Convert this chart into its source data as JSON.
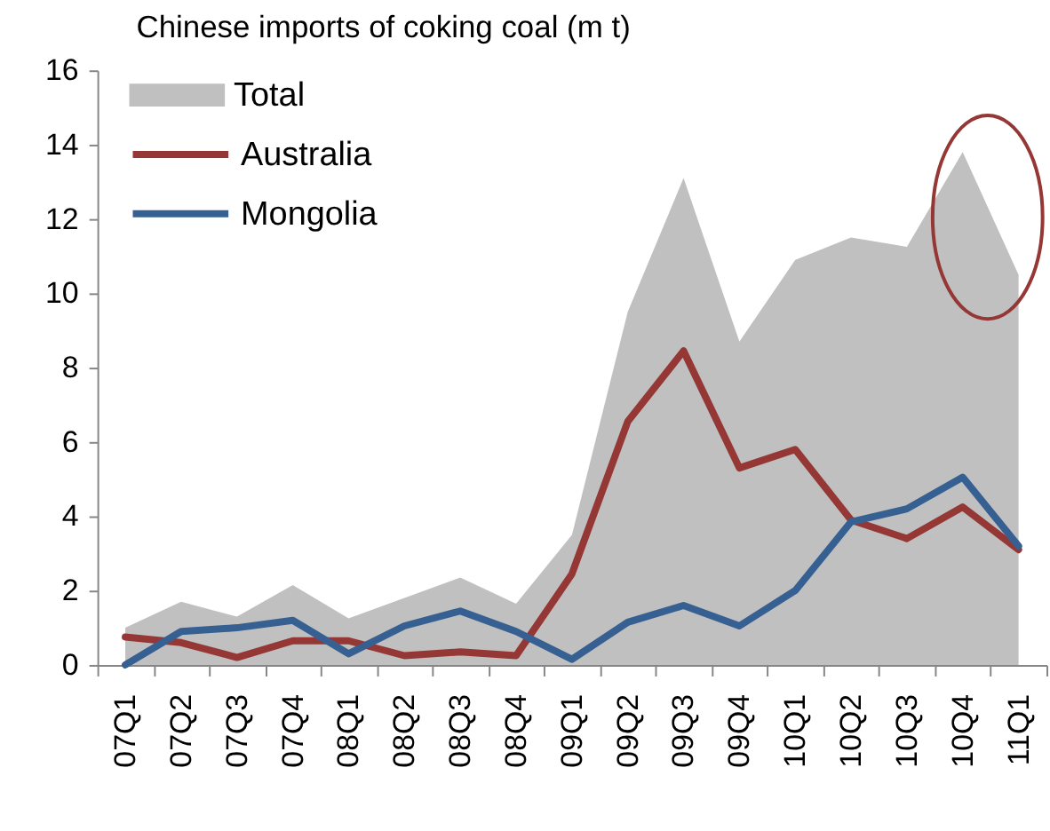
{
  "chart_data": {
    "type": "line",
    "title": "Chinese imports of coking coal (m t)",
    "categories": [
      "07Q1",
      "07Q2",
      "07Q3",
      "07Q4",
      "08Q1",
      "08Q2",
      "08Q3",
      "08Q4",
      "09Q1",
      "09Q2",
      "09Q3",
      "09Q4",
      "10Q1",
      "10Q2",
      "10Q3",
      "10Q4",
      "11Q1"
    ],
    "series": [
      {
        "name": "Total",
        "type": "area",
        "color": "#c0c0c0",
        "values": [
          1.0,
          1.7,
          1.3,
          2.15,
          1.25,
          1.8,
          2.35,
          1.65,
          3.5,
          9.5,
          13.1,
          8.7,
          10.9,
          11.5,
          11.25,
          13.8,
          10.5
        ]
      },
      {
        "name": "Australia",
        "color": "#953735",
        "values": [
          0.75,
          0.6,
          0.2,
          0.65,
          0.65,
          0.25,
          0.35,
          0.25,
          2.45,
          6.55,
          8.45,
          5.3,
          5.8,
          3.9,
          3.4,
          4.25,
          3.1
        ]
      },
      {
        "name": "Mongolia",
        "color": "#376092",
        "values": [
          0.0,
          0.9,
          1.0,
          1.2,
          0.3,
          1.05,
          1.45,
          0.9,
          0.15,
          1.15,
          1.6,
          1.05,
          2.0,
          3.85,
          4.2,
          5.05,
          3.2
        ]
      }
    ],
    "ylim": [
      0,
      16
    ],
    "yticks": [
      0,
      2,
      4,
      6,
      8,
      10,
      12,
      14,
      16
    ],
    "legend": "top left",
    "line_style": "solid"
  }
}
